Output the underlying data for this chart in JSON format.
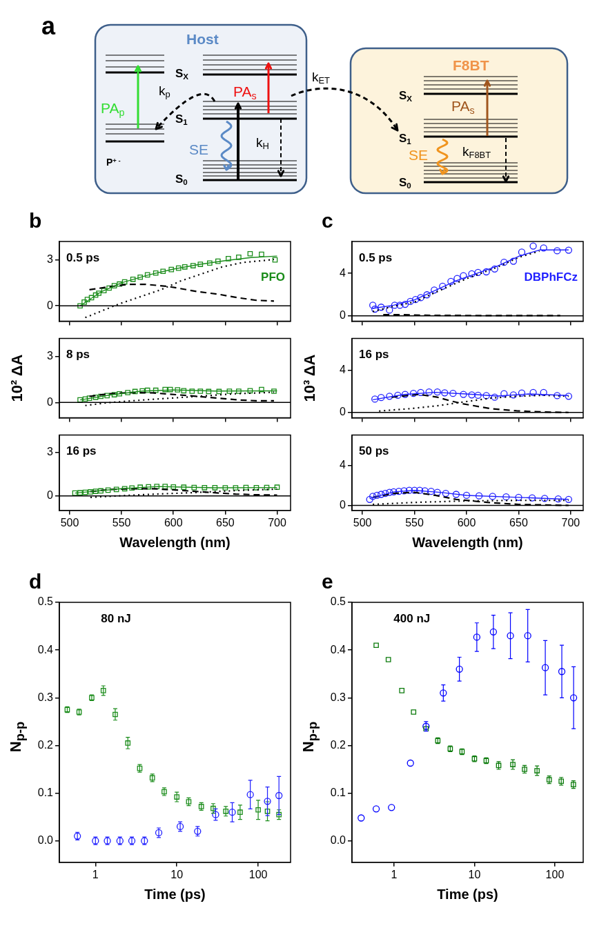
{
  "chart_data": [
    {
      "type": "other",
      "title": "a",
      "annotations": [
        "Host",
        "S$_{X}$",
        "k$_{p}$",
        "PA$_{p}$",
        "PA$_{s}$",
        "S$_{1}$",
        "SE",
        "k$_{H}$",
        "P$^{+ -}$",
        "S$_{0}$",
        "k$_{ET}$",
        "F8BT",
        "S$_{X}$",
        "PA$_{s}$",
        "S$_{1}$",
        "SE",
        "k$_{F8BT}$",
        "S$_{0}$"
      ]
    },
    {
      "type": "scatter",
      "title": "b",
      "annotations": [
        "0.5 ps"
      ],
      "xlim": [
        490,
        713
      ],
      "xticks": [
        500,
        550,
        600,
        650,
        700
      ],
      "ylim": [
        -1,
        4.2
      ],
      "yticks": [
        0,
        3
      ],
      "tick_labels": "y",
      "ref_lines": [
        {
          "axis": "y",
          "value": 0
        }
      ],
      "series": [
        {
          "type": "scatter",
          "name": "PFO",
          "color": "#1a8c1a",
          "marker": "square",
          "x": [
            510,
            514,
            517,
            521,
            525,
            528,
            533,
            538,
            543,
            548,
            553,
            561,
            568,
            575,
            583,
            590,
            598,
            605,
            611,
            619,
            626,
            635,
            643,
            653,
            663,
            674,
            685,
            698
          ],
          "values": [
            0,
            0.24,
            0.41,
            0.53,
            0.7,
            0.82,
            0.99,
            1.16,
            1.31,
            1.42,
            1.56,
            1.73,
            1.87,
            2.02,
            2.14,
            2.25,
            2.37,
            2.46,
            2.54,
            2.62,
            2.71,
            2.79,
            2.91,
            3.08,
            3.17,
            3.4,
            3.36,
            3.0
          ]
        },
        {
          "type": "line",
          "color": "#1a8c1a",
          "line_style": "solid",
          "x": [
            510,
            530,
            550,
            575,
            600,
            625,
            650,
            675,
            700
          ],
          "values": [
            0,
            0.9,
            1.5,
            2.0,
            2.4,
            2.7,
            2.95,
            3.15,
            3.25
          ]
        },
        {
          "type": "line",
          "color": "#000000",
          "line_style": "dashed",
          "x": [
            519,
            536,
            556,
            573,
            593,
            603,
            623,
            643,
            662,
            680,
            697
          ],
          "values": [
            1.05,
            1.22,
            1.4,
            1.4,
            1.28,
            1.17,
            0.93,
            0.76,
            0.53,
            0.36,
            0.31
          ]
        },
        {
          "type": "line",
          "color": "#000000",
          "line_style": "dotted",
          "x": [
            515,
            531,
            548,
            568,
            588,
            607,
            627,
            647,
            667,
            686,
            697
          ],
          "values": [
            -0.77,
            -0.33,
            0.13,
            0.59,
            1.05,
            1.62,
            2.08,
            2.54,
            2.83,
            2.95,
            3.03
          ]
        }
      ]
    },
    {
      "type": "scatter",
      "annotations": [
        "8 ps"
      ],
      "ylabel": "10² ΔA",
      "xlim": [
        490,
        713
      ],
      "xticks": [
        500,
        550,
        600,
        650,
        700
      ],
      "ylim": [
        -1,
        4.2
      ],
      "yticks": [
        0,
        3
      ],
      "tick_labels": "y",
      "ref_lines": [
        {
          "axis": "y",
          "value": 0
        }
      ],
      "series": [
        {
          "type": "scatter",
          "color": "#1a8c1a",
          "marker": "square",
          "x": [
            510,
            515,
            519,
            525,
            530,
            536,
            543,
            548,
            556,
            563,
            570,
            575,
            583,
            592,
            597,
            604,
            610,
            618,
            626,
            634,
            644,
            654,
            663,
            674,
            685,
            697
          ],
          "values": [
            0.17,
            0.23,
            0.28,
            0.34,
            0.4,
            0.45,
            0.51,
            0.57,
            0.65,
            0.72,
            0.76,
            0.8,
            0.8,
            0.85,
            0.85,
            0.83,
            0.77,
            0.74,
            0.74,
            0.72,
            0.72,
            0.74,
            0.74,
            0.77,
            0.85,
            0.74
          ]
        },
        {
          "type": "line",
          "color": "#1a8c1a",
          "line_style": "solid",
          "x": [
            510,
            540,
            570,
            600,
            640,
            700
          ],
          "values": [
            0.17,
            0.5,
            0.75,
            0.82,
            0.75,
            0.76
          ]
        },
        {
          "type": "line",
          "color": "#000000",
          "line_style": "dashed",
          "x": [
            519,
            538,
            560,
            580,
            603,
            623,
            643,
            662,
            680,
            697
          ],
          "values": [
            0.4,
            0.57,
            0.65,
            0.63,
            0.51,
            0.4,
            0.28,
            0.17,
            0.11,
            0.11
          ]
        },
        {
          "type": "line",
          "color": "#000000",
          "line_style": "dotted",
          "x": [
            515,
            536,
            560,
            585,
            610,
            634,
            659,
            684,
            697
          ],
          "values": [
            -0.2,
            -0.02,
            0.11,
            0.23,
            0.34,
            0.45,
            0.57,
            0.63,
            0.68
          ]
        }
      ]
    },
    {
      "type": "scatter",
      "annotations": [
        "16 ps"
      ],
      "xlabel": "Wavelength (nm)",
      "xlim": [
        490,
        713
      ],
      "xticks": [
        500,
        550,
        600,
        650,
        700
      ],
      "ylim": [
        -1,
        4.2
      ],
      "yticks": [
        0,
        3
      ],
      "ref_lines": [
        {
          "axis": "y",
          "value": 0
        }
      ],
      "series": [
        {
          "type": "scatter",
          "color": "#1a8c1a",
          "marker": "square",
          "x": [
            505,
            510,
            515,
            520,
            525,
            530,
            537,
            545,
            553,
            560,
            568,
            576,
            584,
            592,
            600,
            610,
            620,
            630,
            640,
            650,
            660,
            670,
            680,
            690,
            700
          ],
          "values": [
            0.2,
            0.22,
            0.25,
            0.28,
            0.32,
            0.35,
            0.4,
            0.45,
            0.5,
            0.55,
            0.6,
            0.63,
            0.65,
            0.65,
            0.62,
            0.6,
            0.58,
            0.57,
            0.57,
            0.56,
            0.56,
            0.58,
            0.57,
            0.58,
            0.6
          ]
        },
        {
          "type": "line",
          "color": "#1a8c1a",
          "line_style": "solid",
          "x": [
            505,
            550,
            585,
            640,
            700
          ],
          "values": [
            0.2,
            0.5,
            0.65,
            0.56,
            0.58
          ]
        },
        {
          "type": "line",
          "color": "#000000",
          "line_style": "dashed",
          "x": [
            520,
            540,
            560,
            580,
            600,
            620,
            640,
            660,
            680,
            700
          ],
          "values": [
            0.3,
            0.45,
            0.5,
            0.5,
            0.42,
            0.32,
            0.22,
            0.13,
            0.08,
            0.06
          ]
        },
        {
          "type": "line",
          "color": "#000000",
          "line_style": "dotted",
          "x": [
            520,
            550,
            580,
            610,
            640,
            670,
            700
          ],
          "values": [
            -0.1,
            0.02,
            0.12,
            0.2,
            0.3,
            0.4,
            0.47
          ]
        }
      ]
    },
    {
      "type": "scatter",
      "title": "c",
      "annotations": [
        "0.5 ps"
      ],
      "xlim": [
        490,
        712
      ],
      "xticks": [
        500,
        550,
        600,
        650,
        700
      ],
      "ylim": [
        -0.5,
        7
      ],
      "yticks": [
        0,
        4
      ],
      "tick_labels": "y",
      "ref_lines": [
        {
          "axis": "y",
          "value": 0
        }
      ],
      "series": [
        {
          "type": "scatter",
          "name": "DBPhFCz",
          "color": "#1f1fff",
          "marker": "circle",
          "x": [
            510,
            512,
            518,
            526,
            531,
            536,
            541,
            546,
            551,
            556,
            562,
            569,
            577,
            585,
            591,
            597,
            605,
            611,
            619,
            627,
            636,
            645,
            653,
            664,
            674,
            687,
            698
          ],
          "values": [
            0.99,
            0.63,
            0.81,
            0.54,
            0.99,
            0.99,
            1.08,
            1.35,
            1.53,
            1.71,
            1.98,
            2.43,
            2.79,
            3.24,
            3.51,
            3.78,
            3.96,
            4.09,
            4.14,
            4.41,
            5.04,
            5.14,
            6.0,
            6.57,
            6.39,
            6.13,
            6.18
          ]
        },
        {
          "type": "line",
          "color": "#1f1fff",
          "line_style": "solid",
          "x": [
            510,
            530,
            550,
            570,
            590,
            610,
            630,
            650,
            670,
            690,
            698
          ],
          "values": [
            0.7,
            1.0,
            1.5,
            2.4,
            3.3,
            4.0,
            4.7,
            5.6,
            6.2,
            6.2,
            6.2
          ]
        },
        {
          "type": "line",
          "color": "#000000",
          "line_style": "dashed",
          "x": [
            520,
            540,
            560,
            600,
            650,
            690
          ],
          "values": [
            0.1,
            0.1,
            0.05,
            0.03,
            0.02,
            0.02
          ]
        },
        {
          "type": "line",
          "color": "#000000",
          "line_style": "dotted",
          "x": [
            510,
            530,
            550,
            570,
            600,
            630,
            650,
            670
          ],
          "values": [
            0.4,
            0.9,
            1.3,
            2.2,
            3.5,
            4.6,
            5.5,
            6.1
          ]
        }
      ]
    },
    {
      "type": "scatter",
      "annotations": [
        "16 ps"
      ],
      "ylabel": "10³ ΔA",
      "xlim": [
        490,
        712
      ],
      "xticks": [
        500,
        550,
        600,
        650,
        700
      ],
      "ylim": [
        -0.5,
        7
      ],
      "yticks": [
        0,
        4
      ],
      "tick_labels": "y",
      "ref_lines": [
        {
          "axis": "y",
          "value": 0
        }
      ],
      "series": [
        {
          "type": "scatter",
          "color": "#1f1fff",
          "marker": "circle",
          "x": [
            512,
            518,
            526,
            534,
            541,
            549,
            556,
            564,
            572,
            579,
            587,
            597,
            605,
            611,
            619,
            627,
            636,
            645,
            653,
            664,
            674,
            687,
            698
          ],
          "values": [
            1.26,
            1.41,
            1.53,
            1.62,
            1.71,
            1.8,
            1.89,
            1.93,
            1.93,
            1.86,
            1.8,
            1.71,
            1.66,
            1.62,
            1.59,
            1.44,
            1.77,
            1.66,
            1.84,
            1.89,
            1.89,
            1.59,
            1.53
          ]
        },
        {
          "type": "line",
          "color": "#1f1fff",
          "line_style": "solid",
          "x": [
            510,
            540,
            570,
            600,
            630,
            660,
            698
          ],
          "values": [
            1.2,
            1.7,
            1.9,
            1.75,
            1.55,
            1.75,
            1.6
          ]
        },
        {
          "type": "line",
          "color": "#000000",
          "line_style": "dashed",
          "x": [
            528,
            554,
            572,
            585,
            597,
            623,
            648,
            674,
            698
          ],
          "values": [
            1.44,
            1.71,
            1.44,
            1.08,
            0.81,
            0.36,
            0.15,
            0.04,
            0
          ]
        },
        {
          "type": "line",
          "color": "#000000",
          "line_style": "dotted",
          "x": [
            516,
            546,
            572,
            597,
            623,
            648,
            674,
            698
          ],
          "values": [
            0.13,
            0.36,
            0.63,
            0.99,
            1.35,
            1.53,
            1.62,
            1.53
          ]
        }
      ]
    },
    {
      "type": "scatter",
      "annotations": [
        "50 ps"
      ],
      "xlabel": "Wavelength (nm)",
      "xlim": [
        490,
        712
      ],
      "xticks": [
        500,
        550,
        600,
        650,
        700
      ],
      "ylim": [
        -0.5,
        7
      ],
      "yticks": [
        0,
        4
      ],
      "ref_lines": [
        {
          "axis": "y",
          "value": 0
        }
      ],
      "series": [
        {
          "type": "scatter",
          "color": "#1f1fff",
          "marker": "circle",
          "x": [
            507,
            510,
            514,
            518,
            522,
            526,
            530,
            535,
            540,
            545,
            550,
            555,
            560,
            566,
            572,
            580,
            590,
            600,
            612,
            625,
            638,
            650,
            663,
            675,
            688,
            698
          ],
          "values": [
            0.6,
            0.9,
            1.0,
            1.1,
            1.2,
            1.3,
            1.35,
            1.4,
            1.45,
            1.5,
            1.5,
            1.5,
            1.45,
            1.4,
            1.3,
            1.2,
            1.1,
            1.0,
            0.95,
            0.9,
            0.85,
            0.8,
            0.75,
            0.7,
            0.65,
            0.6
          ]
        },
        {
          "type": "line",
          "color": "#1f1fff",
          "line_style": "solid",
          "x": [
            507,
            530,
            550,
            575,
            600,
            650,
            698
          ],
          "values": [
            0.7,
            1.35,
            1.5,
            1.3,
            1.0,
            0.8,
            0.6
          ]
        },
        {
          "type": "line",
          "color": "#000000",
          "line_style": "dashed",
          "x": [
            510,
            530,
            550,
            570,
            590,
            620,
            650,
            698
          ],
          "values": [
            0.8,
            1.2,
            1.3,
            1.0,
            0.6,
            0.3,
            0.1,
            0
          ]
        },
        {
          "type": "line",
          "color": "#000000",
          "line_style": "dotted",
          "x": [
            510,
            550,
            600,
            650,
            698
          ],
          "values": [
            0.1,
            0.3,
            0.45,
            0.5,
            0.5
          ]
        }
      ]
    },
    {
      "type": "scatter",
      "title": "d",
      "annotations": [
        "80 nJ"
      ],
      "xlabel": "Time (ps)",
      "ylabel": "N$_{p-p}$",
      "log": "x",
      "xlim": [
        0.36,
        250
      ],
      "xticks": [
        1,
        10,
        100
      ],
      "ylim": [
        -0.045,
        0.5
      ],
      "yticks": [
        {
          "value": 0,
          "label": "0.0"
        },
        0.1,
        0.2,
        0.3,
        0.4,
        0.5
      ],
      "series": [
        {
          "type": "scatter",
          "color": "#1a8c1a",
          "marker": "square",
          "x": [
            0.45,
            0.63,
            0.9,
            1.25,
            1.75,
            2.5,
            3.5,
            5,
            7,
            10,
            14,
            20,
            28,
            40,
            60,
            100,
            130,
            180
          ],
          "values": [
            0.275,
            0.27,
            0.3,
            0.315,
            0.265,
            0.205,
            0.152,
            0.132,
            0.103,
            0.092,
            0.082,
            0.072,
            0.068,
            0.062,
            0.06,
            0.065,
            0.062,
            0.055
          ],
          "errors": [
            0.006,
            0.006,
            0.006,
            0.01,
            0.012,
            0.012,
            0.008,
            0.008,
            0.008,
            0.01,
            0.008,
            0.008,
            0.01,
            0.01,
            0.015,
            0.02,
            0.02,
            0.01
          ]
        },
        {
          "type": "scatter",
          "color": "#1f1fff",
          "marker": "circle",
          "x": [
            0.6,
            1,
            1.4,
            2,
            2.8,
            4,
            6,
            11,
            18,
            30,
            48,
            80,
            130,
            180
          ],
          "values": [
            0.01,
            0,
            0,
            0,
            0,
            0,
            0.017,
            0.03,
            0.02,
            0.055,
            0.06,
            0.097,
            0.083,
            0.095
          ],
          "errors": [
            0.008,
            0.008,
            0.008,
            0.008,
            0.008,
            0.008,
            0.01,
            0.01,
            0.01,
            0.012,
            0.02,
            0.03,
            0.03,
            0.04
          ]
        }
      ]
    },
    {
      "type": "scatter",
      "title": "e",
      "annotations": [
        "400 nJ"
      ],
      "xlabel": "Time (ps)",
      "ylabel": "N$_{p-p}$",
      "log": "x",
      "xlim": [
        0.3,
        225
      ],
      "xticks": [
        1,
        10,
        100
      ],
      "ylim": [
        -0.045,
        0.5
      ],
      "yticks": [
        {
          "value": 0,
          "label": "0.0"
        },
        0.1,
        0.2,
        0.3,
        0.4,
        0.5
      ],
      "series": [
        {
          "type": "scatter",
          "color": "#0a7a0a",
          "marker": "square",
          "x": [
            0.6,
            0.85,
            1.25,
            1.75,
            2.5,
            3.5,
            5,
            7,
            10,
            14,
            20,
            30,
            42,
            60,
            85,
            120,
            170
          ],
          "values": [
            0.41,
            0.38,
            0.315,
            0.27,
            0.235,
            0.21,
            0.193,
            0.187,
            0.172,
            0.168,
            0.158,
            0.16,
            0.15,
            0.147,
            0.128,
            0.125,
            0.118
          ],
          "errors": [
            null,
            null,
            null,
            null,
            null,
            0.006,
            0.006,
            0.006,
            0.006,
            0.006,
            0.008,
            0.01,
            0.008,
            0.01,
            0.008,
            0.008,
            0.008
          ]
        },
        {
          "type": "scatter",
          "color": "#0000ff",
          "marker": "circle",
          "x": [
            0.39,
            0.6,
            0.93,
            1.6,
            2.5,
            4.1,
            6.5,
            10.7,
            17.2,
            28,
            46,
            76,
            122,
            171
          ],
          "values": [
            0.048,
            0.067,
            0.07,
            0.163,
            0.24,
            0.31,
            0.36,
            0.427,
            0.438,
            0.43,
            0.43,
            0.363,
            0.355,
            0.3
          ],
          "errors": [
            null,
            null,
            null,
            null,
            0.01,
            0.017,
            0.025,
            0.03,
            0.035,
            0.048,
            0.055,
            0.057,
            0.055,
            0.065
          ]
        }
      ]
    }
  ]
}
